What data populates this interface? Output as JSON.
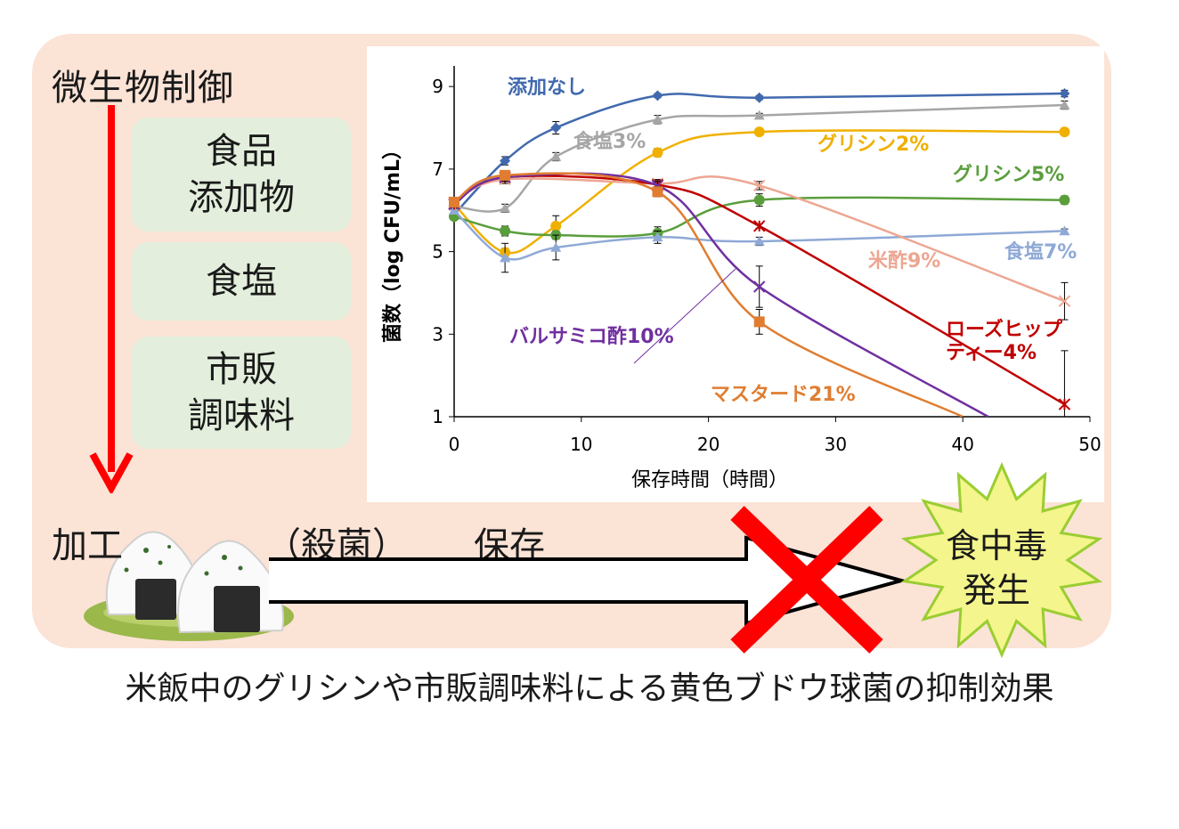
{
  "header": {
    "title": "微生物制御"
  },
  "controls": {
    "additives": "食品\n添加物",
    "salt": "食塩",
    "seasoning": "市販\n調味料"
  },
  "process": {
    "processing": "加工",
    "sterilization": "（殺菌）",
    "storage": "保存",
    "outcome": "食中毒\n発生"
  },
  "caption": "米飯中のグリシンや市販調味料による黄色ブドウ球菌の抑制効果",
  "chart_data": {
    "type": "line",
    "title": "",
    "xlabel": "保存時間（時間）",
    "ylabel": "菌数（log CFU/mL）",
    "xlim": [
      0,
      50
    ],
    "ylim": [
      1,
      9.5
    ],
    "xticks": [
      0,
      10,
      20,
      30,
      40,
      50
    ],
    "yticks": [
      1,
      3,
      5,
      7,
      9
    ],
    "grid": false,
    "legend": "inline labels",
    "series": [
      {
        "name": "添加なし",
        "color": "#4169ae",
        "marker": "diamond",
        "x": [
          0,
          4,
          8,
          16,
          24,
          48
        ],
        "y": [
          5.9,
          7.2,
          8.0,
          8.78,
          8.73,
          8.83
        ],
        "err": [
          0.05,
          0.1,
          0.15,
          0.05,
          0.05,
          0.08
        ]
      },
      {
        "name": "食塩3%",
        "color": "#a6a6a6",
        "marker": "triangle",
        "x": [
          0,
          4,
          8,
          16,
          24,
          48
        ],
        "y": [
          6.1,
          6.05,
          7.3,
          8.2,
          8.3,
          8.55
        ],
        "err": [
          0.05,
          0.1,
          0.1,
          0.1,
          0.05,
          0.1
        ]
      },
      {
        "name": "グリシン2%",
        "color": "#f0b000",
        "marker": "circle",
        "x": [
          0,
          4,
          8,
          16,
          24,
          48
        ],
        "y": [
          6.15,
          4.98,
          5.62,
          7.4,
          7.9,
          7.9
        ],
        "err": [
          0.05,
          0.1,
          0.25,
          0.1,
          0.05,
          0.05
        ]
      },
      {
        "name": "グリシン5%",
        "color": "#5a9e3c",
        "marker": "circle",
        "x": [
          0,
          4,
          8,
          16,
          24,
          48
        ],
        "y": [
          5.85,
          5.5,
          5.4,
          5.45,
          6.25,
          6.25
        ],
        "err": [
          0.05,
          0.12,
          0.1,
          0.15,
          0.15,
          0.1
        ]
      },
      {
        "name": "食塩7%",
        "color": "#8fa9d6",
        "marker": "triangle",
        "x": [
          0,
          4,
          8,
          16,
          24,
          48
        ],
        "y": [
          6.0,
          4.85,
          5.1,
          5.35,
          5.25,
          5.5
        ],
        "err": [
          0.05,
          0.35,
          0.3,
          0.15,
          0.1,
          0.05
        ]
      },
      {
        "name": "米酢9%",
        "color": "#eda692",
        "marker": "cross",
        "x": [
          0,
          4,
          16,
          24,
          48
        ],
        "y": [
          6.2,
          6.75,
          6.65,
          6.6,
          3.8
        ],
        "err": [
          0.05,
          0.1,
          0.1,
          0.1,
          0.45
        ]
      },
      {
        "name": "ローズヒップ\nティー4%",
        "color": "#c00000",
        "marker": "star",
        "x": [
          0,
          4,
          16,
          24,
          48
        ],
        "y": [
          6.15,
          6.8,
          6.62,
          5.62,
          1.3
        ],
        "err": [
          0.05,
          0.1,
          0.1,
          0.05,
          1.3
        ]
      },
      {
        "name": "バルサミコ酢10%",
        "color": "#7030a0",
        "marker": "cross",
        "x": [
          0,
          4,
          16,
          24,
          42
        ],
        "y": [
          6.15,
          6.8,
          6.6,
          4.15,
          1.0
        ],
        "err": [
          0.05,
          0.1,
          0.1,
          0.5,
          0
        ]
      },
      {
        "name": "マスタード21%",
        "color": "#e07d31",
        "marker": "square",
        "x": [
          0,
          4,
          16,
          24,
          40
        ],
        "y": [
          6.2,
          6.85,
          6.45,
          3.3,
          1.0
        ],
        "err": [
          0.05,
          0.1,
          0.12,
          0.3,
          0
        ]
      }
    ]
  }
}
